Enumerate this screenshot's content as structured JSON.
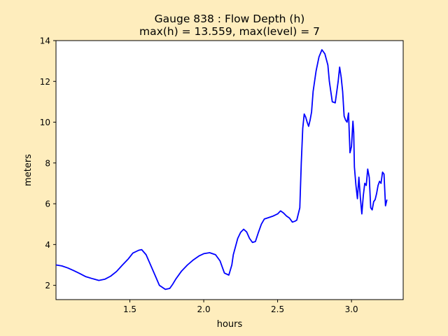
{
  "chart_data": {
    "type": "line",
    "title_line1": "Gauge 838 : Flow Depth (h)",
    "title_line2": "max(h) =  13.559,    max(level) = 7",
    "xlabel": "hours",
    "ylabel": "meters",
    "xlim": [
      1.0,
      3.35
    ],
    "ylim": [
      1.3,
      14.0
    ],
    "xticks": [
      1.5,
      2.0,
      2.5,
      3.0
    ],
    "xtick_labels": [
      "1.5",
      "2.0",
      "2.5",
      "3.0"
    ],
    "yticks": [
      2,
      4,
      6,
      8,
      10,
      12,
      14
    ],
    "ytick_labels": [
      "2",
      "4",
      "6",
      "8",
      "10",
      "12",
      "14"
    ],
    "grid": false,
    "colors": {
      "line": "#0000ff",
      "background": "#feedbd",
      "plot_area": "#ffffff"
    },
    "series": [
      {
        "color": "#0000ff",
        "x": [
          1.0,
          1.04,
          1.08,
          1.12,
          1.16,
          1.2,
          1.25,
          1.29,
          1.33,
          1.37,
          1.41,
          1.45,
          1.49,
          1.52,
          1.56,
          1.58,
          1.61,
          1.64,
          1.67,
          1.7,
          1.74,
          1.77,
          1.79,
          1.81,
          1.85,
          1.89,
          1.93,
          1.97,
          2.0,
          2.04,
          2.08,
          2.11,
          2.14,
          2.17,
          2.19,
          2.2,
          2.23,
          2.25,
          2.27,
          2.29,
          2.31,
          2.33,
          2.35,
          2.37,
          2.39,
          2.41,
          2.43,
          2.47,
          2.5,
          2.52,
          2.54,
          2.56,
          2.58,
          2.6,
          2.62,
          2.63,
          2.65,
          2.66,
          2.67,
          2.68,
          2.69,
          2.7,
          2.71,
          2.72,
          2.73,
          2.74,
          2.76,
          2.78,
          2.8,
          2.82,
          2.84,
          2.85,
          2.87,
          2.89,
          2.91,
          2.92,
          2.93,
          2.94,
          2.95,
          2.96,
          2.97,
          2.98,
          2.99,
          3.0,
          3.01,
          3.015,
          3.02,
          3.03,
          3.04,
          3.05,
          3.06,
          3.07,
          3.08,
          3.09,
          3.1,
          3.11,
          3.12,
          3.13,
          3.14,
          3.15,
          3.16,
          3.17,
          3.18,
          3.19,
          3.2,
          3.21,
          3.22,
          3.23,
          3.24
        ],
        "values": [
          3.0,
          2.95,
          2.85,
          2.72,
          2.58,
          2.43,
          2.32,
          2.24,
          2.3,
          2.45,
          2.68,
          3.0,
          3.3,
          3.58,
          3.72,
          3.75,
          3.5,
          3.0,
          2.5,
          2.0,
          1.8,
          1.85,
          2.05,
          2.3,
          2.7,
          3.0,
          3.25,
          3.45,
          3.55,
          3.6,
          3.5,
          3.2,
          2.6,
          2.5,
          3.0,
          3.5,
          4.3,
          4.6,
          4.75,
          4.62,
          4.3,
          4.1,
          4.15,
          4.6,
          5.0,
          5.25,
          5.3,
          5.4,
          5.5,
          5.65,
          5.55,
          5.4,
          5.3,
          5.1,
          5.15,
          5.2,
          5.8,
          8.0,
          9.7,
          10.4,
          10.25,
          10.0,
          9.8,
          10.1,
          10.5,
          11.5,
          12.5,
          13.2,
          13.55,
          13.35,
          12.8,
          12.0,
          11.0,
          10.95,
          12.0,
          12.7,
          12.2,
          11.5,
          10.3,
          10.1,
          10.0,
          10.45,
          8.5,
          8.8,
          10.05,
          9.5,
          7.8,
          6.9,
          6.25,
          7.3,
          6.3,
          5.5,
          6.4,
          7.0,
          6.9,
          7.7,
          7.3,
          5.8,
          5.7,
          6.1,
          6.2,
          6.5,
          6.9,
          7.1,
          7.0,
          7.55,
          7.45,
          5.9,
          6.2
        ]
      }
    ]
  }
}
